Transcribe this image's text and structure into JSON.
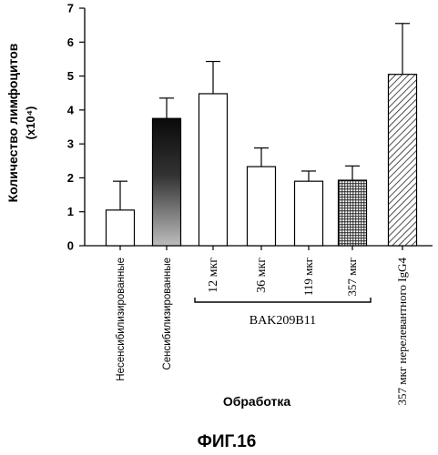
{
  "figure_caption": "ФИГ.16",
  "chart_data": {
    "type": "bar",
    "title": "",
    "ylabel": "Количество лимфоцитов",
    "ylabel_unit": "(x10⁴)",
    "xlabel": "Обработка",
    "ylim": [
      0,
      7
    ],
    "yticks": [
      "0",
      "1",
      "2",
      "3",
      "4",
      "5",
      "6",
      "7"
    ],
    "grid": false,
    "categories": [
      "Несенсибилизированные",
      "Сенсибилизированные",
      "12 мкг",
      "36 мкг",
      "119 мкг",
      "357 мкг",
      "357 мкг нерелевантного IgG4"
    ],
    "values": [
      1.05,
      3.75,
      4.48,
      2.33,
      1.9,
      1.93,
      5.05
    ],
    "errors": [
      0.85,
      0.6,
      0.95,
      0.55,
      0.3,
      0.42,
      1.5
    ],
    "fills": [
      "white",
      "dark-gradient",
      "white",
      "white",
      "white",
      "crosshatch",
      "diagonal-hatch"
    ],
    "group_label": "BAK209B11",
    "group_span": [
      2,
      5
    ]
  }
}
